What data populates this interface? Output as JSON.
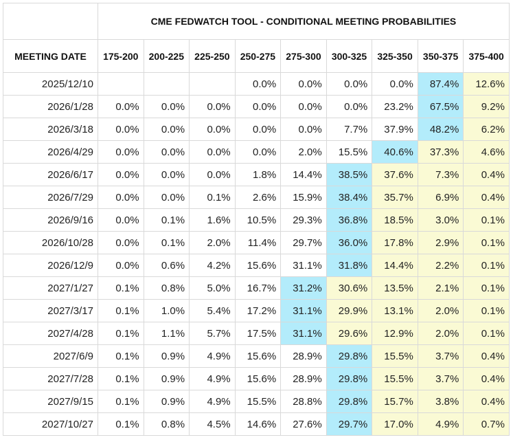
{
  "table": {
    "title": "CME FEDWATCH TOOL - CONDITIONAL MEETING PROBABILITIES",
    "date_header": "MEETING DATE",
    "columns": [
      "175-200",
      "200-225",
      "225-250",
      "250-275",
      "275-300",
      "300-325",
      "325-350",
      "350-375",
      "375-400"
    ],
    "colors": {
      "max": "#b3ecfb",
      "above": "#fafad4"
    },
    "rows": [
      {
        "date": "2025/12/10",
        "cells": [
          null,
          null,
          null,
          "0.0%",
          "0.0%",
          "0.0%",
          "0.0%",
          "87.4%",
          "12.6%"
        ]
      },
      {
        "date": "2026/1/28",
        "cells": [
          "0.0%",
          "0.0%",
          "0.0%",
          "0.0%",
          "0.0%",
          "0.0%",
          "23.2%",
          "67.5%",
          "9.2%"
        ]
      },
      {
        "date": "2026/3/18",
        "cells": [
          "0.0%",
          "0.0%",
          "0.0%",
          "0.0%",
          "0.0%",
          "7.7%",
          "37.9%",
          "48.2%",
          "6.2%"
        ]
      },
      {
        "date": "2026/4/29",
        "cells": [
          "0.0%",
          "0.0%",
          "0.0%",
          "0.0%",
          "2.0%",
          "15.5%",
          "40.6%",
          "37.3%",
          "4.6%"
        ]
      },
      {
        "date": "2026/6/17",
        "cells": [
          "0.0%",
          "0.0%",
          "0.0%",
          "1.8%",
          "14.4%",
          "38.5%",
          "37.6%",
          "7.3%",
          "0.4%"
        ]
      },
      {
        "date": "2026/7/29",
        "cells": [
          "0.0%",
          "0.0%",
          "0.1%",
          "2.6%",
          "15.9%",
          "38.4%",
          "35.7%",
          "6.9%",
          "0.4%"
        ]
      },
      {
        "date": "2026/9/16",
        "cells": [
          "0.0%",
          "0.1%",
          "1.6%",
          "10.5%",
          "29.3%",
          "36.8%",
          "18.5%",
          "3.0%",
          "0.1%"
        ]
      },
      {
        "date": "2026/10/28",
        "cells": [
          "0.0%",
          "0.1%",
          "2.0%",
          "11.4%",
          "29.7%",
          "36.0%",
          "17.8%",
          "2.9%",
          "0.1%"
        ]
      },
      {
        "date": "2026/12/9",
        "cells": [
          "0.0%",
          "0.6%",
          "4.2%",
          "15.6%",
          "31.1%",
          "31.8%",
          "14.4%",
          "2.2%",
          "0.1%"
        ]
      },
      {
        "date": "2027/1/27",
        "cells": [
          "0.1%",
          "0.8%",
          "5.0%",
          "16.7%",
          "31.2%",
          "30.6%",
          "13.5%",
          "2.1%",
          "0.1%"
        ]
      },
      {
        "date": "2027/3/17",
        "cells": [
          "0.1%",
          "1.0%",
          "5.4%",
          "17.2%",
          "31.1%",
          "29.9%",
          "13.1%",
          "2.0%",
          "0.1%"
        ]
      },
      {
        "date": "2027/4/28",
        "cells": [
          "0.1%",
          "1.1%",
          "5.7%",
          "17.5%",
          "31.1%",
          "29.6%",
          "12.9%",
          "2.0%",
          "0.1%"
        ]
      },
      {
        "date": "2027/6/9",
        "cells": [
          "0.1%",
          "0.9%",
          "4.9%",
          "15.6%",
          "28.9%",
          "29.8%",
          "15.5%",
          "3.7%",
          "0.4%"
        ]
      },
      {
        "date": "2027/7/28",
        "cells": [
          "0.1%",
          "0.9%",
          "4.9%",
          "15.6%",
          "28.9%",
          "29.8%",
          "15.5%",
          "3.7%",
          "0.4%"
        ]
      },
      {
        "date": "2027/9/15",
        "cells": [
          "0.1%",
          "0.9%",
          "4.9%",
          "15.5%",
          "28.8%",
          "29.8%",
          "15.7%",
          "3.8%",
          "0.4%"
        ]
      },
      {
        "date": "2027/10/27",
        "cells": [
          "0.1%",
          "0.8%",
          "4.5%",
          "14.6%",
          "27.6%",
          "29.7%",
          "17.0%",
          "4.9%",
          "0.7%"
        ]
      }
    ]
  }
}
